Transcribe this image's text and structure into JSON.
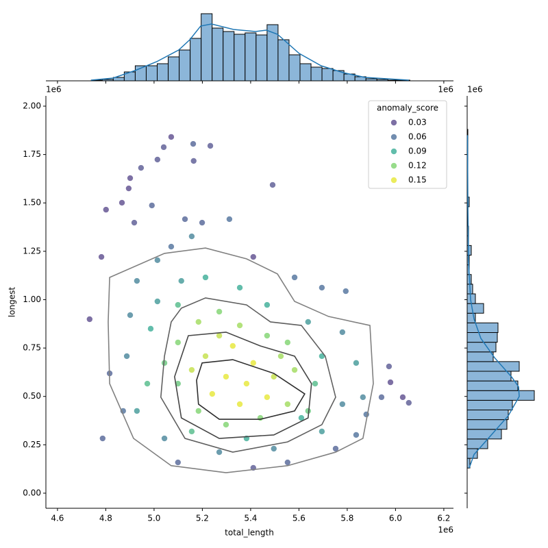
{
  "chart_data": [
    {
      "type": "scatter",
      "x_label": "total_length",
      "y_label": "longest",
      "x_offset": "1e6",
      "y_offset": "1e6",
      "xlim": [
        4.552,
        6.24
      ],
      "ylim": [
        -0.078,
        2.053
      ],
      "xticks": [
        4.6,
        4.8,
        {
          "value": 5.0,
          "label": "5.0"
        },
        5.2,
        5.4,
        5.6,
        5.8,
        {
          "value": 6.0,
          "label": "6.0"
        },
        6.2
      ],
      "yticks": [
        {
          "value": 0,
          "label": "0.00"
        },
        {
          "value": 0.25,
          "label": "0.25"
        },
        {
          "value": 0.5,
          "label": "0.50"
        },
        {
          "value": 0.75,
          "label": "0.75"
        },
        {
          "value": 1.0,
          "label": "1.00"
        },
        {
          "value": 1.25,
          "label": "1.25"
        },
        {
          "value": 1.5,
          "label": "1.50"
        },
        {
          "value": 1.75,
          "label": "1.75"
        },
        {
          "value": 2.0,
          "label": "2.00"
        }
      ],
      "x": [
        4.733,
        4.782,
        4.801,
        4.867,
        4.895,
        4.901,
        4.946,
        5.014,
        5.04,
        5.071,
        5.162,
        5.233,
        5.164,
        5.491,
        5.979,
        6.03,
        6.055,
        5.973,
        5.942,
        4.918,
        4.991,
        5.128,
        5.199,
        5.312,
        4.787,
        4.816,
        4.872,
        5.099,
        5.411,
        5.553,
        5.752,
        5.837,
        5.879,
        5.865,
        5.695,
        5.794,
        5.582,
        5.411,
        4.929,
        5.014,
        5.113,
        5.213,
        5.355,
        5.468,
        5.638,
        5.78,
        5.837,
        5.78,
        5.695,
        5.496,
        5.27,
        5.043,
        4.929,
        4.887,
        4.901,
        5.071,
        5.156,
        5.014,
        4.972,
        4.986,
        5.099,
        5.667,
        5.61,
        5.383,
        5.156,
        5.695,
        5.099,
        5.184,
        5.27,
        5.355,
        5.468,
        5.553,
        5.582,
        5.553,
        5.44,
        5.298,
        5.184,
        5.099,
        5.213,
        5.326,
        5.411,
        5.496,
        5.468,
        5.355,
        5.241,
        5.298,
        5.383,
        5.156,
        5.525,
        5.27,
        5.043,
        5.638
      ],
      "y": [
        0.899,
        1.221,
        1.465,
        1.501,
        1.575,
        1.628,
        1.681,
        1.724,
        1.788,
        1.841,
        1.805,
        1.795,
        1.717,
        1.593,
        0.573,
        0.496,
        0.467,
        0.655,
        0.496,
        1.398,
        1.487,
        1.416,
        1.398,
        1.416,
        0.283,
        0.619,
        0.425,
        0.159,
        0.131,
        0.159,
        0.23,
        0.301,
        0.407,
        0.496,
        1.062,
        1.044,
        1.115,
        1.221,
        1.097,
        0.991,
        1.097,
        1.115,
        1.062,
        0.973,
        0.885,
        0.832,
        0.673,
        0.46,
        0.319,
        0.23,
        0.212,
        0.283,
        0.425,
        0.708,
        0.92,
        1.274,
        1.327,
        1.204,
        0.566,
        0.85,
        0.973,
        0.566,
        0.389,
        0.283,
        0.319,
        0.708,
        0.779,
        0.885,
        0.938,
        0.867,
        0.814,
        0.779,
        0.637,
        0.46,
        0.389,
        0.354,
        0.425,
        0.566,
        0.708,
        0.761,
        0.673,
        0.602,
        0.496,
        0.46,
        0.513,
        0.602,
        0.566,
        0.637,
        0.708,
        0.814,
        0.673,
        0.425
      ],
      "anomaly_score": [
        0.03,
        0.03,
        0.02,
        0.03,
        0.03,
        0.02,
        0.04,
        0.04,
        0.04,
        0.03,
        0.05,
        0.04,
        0.04,
        0.04,
        0.03,
        0.03,
        0.04,
        0.04,
        0.05,
        0.04,
        0.05,
        0.05,
        0.05,
        0.06,
        0.05,
        0.05,
        0.06,
        0.05,
        0.04,
        0.05,
        0.05,
        0.06,
        0.06,
        0.07,
        0.06,
        0.06,
        0.06,
        0.03,
        0.07,
        0.08,
        0.08,
        0.09,
        0.09,
        0.09,
        0.08,
        0.07,
        0.08,
        0.07,
        0.08,
        0.07,
        0.07,
        0.07,
        0.08,
        0.07,
        0.07,
        0.06,
        0.07,
        0.07,
        0.1,
        0.09,
        0.1,
        0.1,
        0.09,
        0.09,
        0.1,
        0.09,
        0.12,
        0.13,
        0.12,
        0.13,
        0.12,
        0.12,
        0.13,
        0.13,
        0.12,
        0.12,
        0.12,
        0.11,
        0.14,
        0.15,
        0.15,
        0.14,
        0.15,
        0.16,
        0.15,
        0.16,
        0.16,
        0.14,
        0.13,
        0.14,
        0.11,
        0.11
      ],
      "legend": {
        "title": "anomaly_score",
        "corner": "upper right",
        "entries": [
          {
            "value": 0.03,
            "color": "#46337e"
          },
          {
            "value": 0.06,
            "color": "#365c8d"
          },
          {
            "value": 0.09,
            "color": "#1fa187"
          },
          {
            "value": 0.12,
            "color": "#6ccd5a"
          },
          {
            "value": 0.15,
            "color": "#e2e418"
          }
        ]
      },
      "contours": [
        {
          "color": "#808080",
          "x": [
            4.816,
            5.043,
            5.213,
            5.383,
            5.511,
            5.582,
            5.723,
            5.894,
            5.908,
            5.865,
            5.752,
            5.553,
            5.298,
            5.071,
            4.915,
            4.816,
            4.81
          ],
          "y": [
            1.115,
            1.239,
            1.267,
            1.211,
            1.133,
            0.991,
            0.913,
            0.867,
            0.566,
            0.283,
            0.212,
            0.142,
            0.106,
            0.142,
            0.283,
            0.566,
            0.885
          ]
        },
        {
          "color": "#5f5f5f",
          "x": [
            5.113,
            5.213,
            5.383,
            5.482,
            5.61,
            5.709,
            5.752,
            5.695,
            5.553,
            5.326,
            5.128,
            5.028,
            5.043,
            5.071
          ],
          "y": [
            0.956,
            1.009,
            0.973,
            0.885,
            0.867,
            0.708,
            0.496,
            0.354,
            0.265,
            0.212,
            0.283,
            0.496,
            0.708,
            0.885
          ]
        },
        {
          "color": "#454545",
          "x": [
            5.142,
            5.298,
            5.44,
            5.582,
            5.652,
            5.638,
            5.496,
            5.27,
            5.113,
            5.085
          ],
          "y": [
            0.814,
            0.832,
            0.761,
            0.708,
            0.566,
            0.389,
            0.301,
            0.283,
            0.389,
            0.602
          ]
        },
        {
          "color": "#2e2e2e",
          "x": [
            5.199,
            5.326,
            5.496,
            5.624,
            5.582,
            5.44,
            5.27,
            5.184,
            5.176
          ],
          "y": [
            0.673,
            0.69,
            0.619,
            0.513,
            0.425,
            0.382,
            0.382,
            0.46,
            0.584
          ]
        }
      ]
    },
    {
      "type": "histogram",
      "orientation": "vertical",
      "offset": "1e6",
      "color": "#8cb6d9",
      "kde_color": "#1f77b4",
      "ylim": [
        0,
        100
      ],
      "bins": [
        4.74,
        4.7855,
        4.831,
        4.8765,
        4.922,
        4.9675,
        5.013,
        5.0585,
        5.104,
        5.1495,
        5.195,
        5.2405,
        5.286,
        5.3315,
        5.377,
        5.4225,
        5.468,
        5.5135,
        5.559,
        5.6045,
        5.65,
        5.6955,
        5.741,
        5.7865,
        5.832,
        5.8775,
        5.923,
        5.9685,
        6.014,
        6.0595
      ],
      "counts": [
        1,
        2,
        5,
        13,
        22,
        22,
        25,
        35,
        45,
        62,
        98,
        77,
        72,
        68,
        70,
        67,
        82,
        60,
        38,
        25,
        20,
        18,
        15,
        10,
        6,
        3,
        2,
        1,
        1
      ],
      "kde": {
        "x": [
          4.739,
          4.83,
          4.921,
          5.011,
          5.102,
          5.148,
          5.193,
          5.238,
          5.329,
          5.42,
          5.465,
          5.511,
          5.601,
          5.692,
          5.783,
          5.874,
          6.055
        ],
        "values": [
          1,
          4,
          15,
          28,
          45,
          60,
          80,
          83,
          75,
          72,
          74,
          68,
          40,
          22,
          12,
          5,
          1
        ]
      }
    },
    {
      "type": "histogram",
      "orientation": "horizontal",
      "offset": "1e6",
      "color": "#8cb6d9",
      "kde_color": "#1f77b4",
      "xlim": [
        0,
        100
      ],
      "bins": [
        0.13,
        0.18,
        0.23,
        0.28,
        0.33,
        0.38,
        0.43,
        0.48,
        0.53,
        0.58,
        0.63,
        0.68,
        0.73,
        0.78,
        0.83,
        0.88,
        0.93,
        0.98,
        1.03,
        1.08,
        1.13,
        1.18,
        1.23,
        1.28,
        1.33,
        1.38,
        1.43,
        1.48,
        1.53,
        1.58,
        1.63,
        1.68,
        1.73,
        1.78,
        1.83,
        1.88
      ],
      "counts": [
        4,
        15,
        30,
        50,
        58,
        60,
        66,
        98,
        74,
        64,
        76,
        38,
        42,
        44,
        45,
        12,
        24,
        12,
        8,
        6,
        3,
        3,
        6,
        2,
        2,
        1,
        1,
        3,
        1,
        1,
        1,
        1,
        1,
        1,
        1
      ],
      "kde": {
        "y": [
          0.13,
          0.2,
          0.3,
          0.4,
          0.5,
          0.55,
          0.6,
          0.7,
          0.8,
          0.9,
          1.0,
          1.2,
          1.5,
          1.85
        ],
        "values": [
          3,
          10,
          35,
          60,
          76,
          75,
          65,
          40,
          20,
          10,
          5,
          2,
          1,
          0.5
        ]
      }
    }
  ]
}
